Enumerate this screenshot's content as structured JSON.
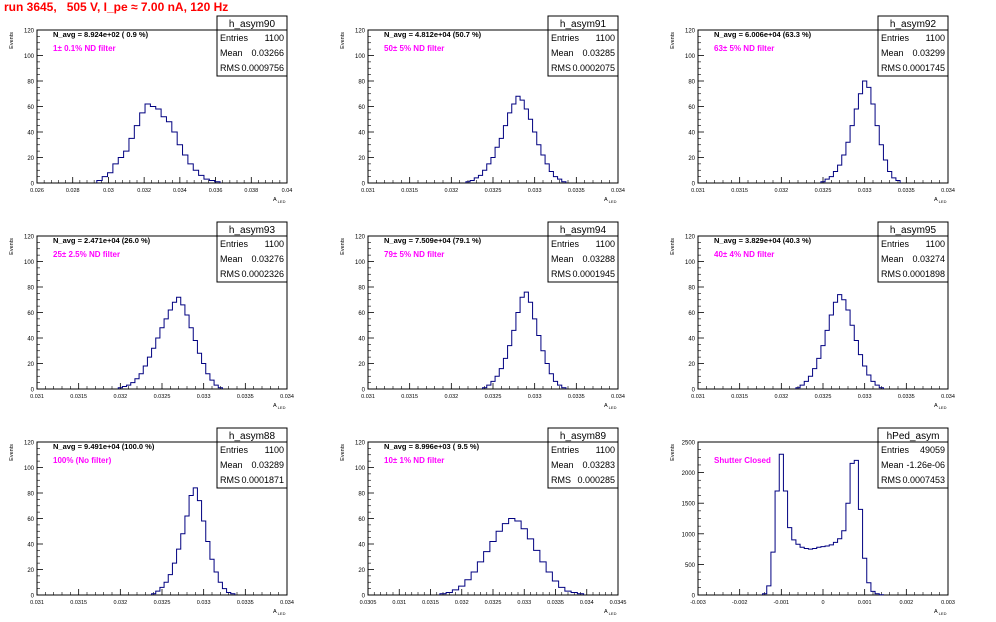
{
  "page": {
    "title": "run 3645,   505 V, I_pe ≈ 7.00 nA, 120 Hz"
  },
  "style": {
    "hist_color": "#000080",
    "annotation_color": "#ff00ff",
    "title_color": "#ff0000"
  },
  "common": {
    "y_axis_label": "Events",
    "x_axis_label": "A",
    "x_axis_label_sub": "LED",
    "entries_label": "Entries",
    "mean_label": "Mean",
    "rms_label": "RMS"
  },
  "chart_data": [
    {
      "type": "histogram",
      "name": "h_asym90",
      "navg": "N_avg = 8.924e+02 ( 0.9 %)",
      "filter": "1± 0.1% ND filter",
      "entries": "1100",
      "mean": "0.03266",
      "rms": "0.0009756",
      "xlim": [
        0.026,
        0.04
      ],
      "ylim": [
        0,
        120
      ],
      "xticks": [
        0.026,
        0.028,
        0.03,
        0.032,
        0.034,
        0.036,
        0.038,
        0.04
      ],
      "yticks": [
        0,
        20,
        40,
        60,
        80,
        100,
        120
      ],
      "x": [
        0.0295,
        0.0298,
        0.0301,
        0.0304,
        0.0307,
        0.031,
        0.0313,
        0.0316,
        0.0319,
        0.0322,
        0.0325,
        0.0328,
        0.0331,
        0.0334,
        0.0337,
        0.034,
        0.0343,
        0.0346,
        0.0349,
        0.0352,
        0.0355,
        0.0358,
        0.0361
      ],
      "values": [
        2,
        5,
        8,
        15,
        20,
        25,
        35,
        45,
        55,
        62,
        60,
        58,
        52,
        48,
        40,
        30,
        22,
        15,
        10,
        6,
        3,
        2,
        1
      ]
    },
    {
      "type": "histogram",
      "name": "h_asym91",
      "navg": "N_avg = 4.812e+04 (50.7 %)",
      "filter": "50± 5% ND filter",
      "entries": "1100",
      "mean": "0.03285",
      "rms": "0.0002075",
      "xlim": [
        0.031,
        0.034
      ],
      "ylim": [
        0,
        120
      ],
      "xticks": [
        0.031,
        0.0315,
        0.032,
        0.0325,
        0.033,
        0.0335,
        0.034
      ],
      "yticks": [
        0,
        20,
        40,
        60,
        80,
        100,
        120
      ],
      "x": [
        0.0322,
        0.03225,
        0.0323,
        0.03235,
        0.0324,
        0.03245,
        0.0325,
        0.03255,
        0.0326,
        0.03265,
        0.0327,
        0.03275,
        0.0328,
        0.03285,
        0.0329,
        0.03295,
        0.033,
        0.03305,
        0.0331,
        0.03315,
        0.0332,
        0.03325,
        0.0333,
        0.03335
      ],
      "values": [
        1,
        2,
        4,
        6,
        10,
        15,
        20,
        28,
        35,
        45,
        55,
        62,
        68,
        65,
        58,
        50,
        40,
        30,
        22,
        15,
        9,
        5,
        3,
        1
      ]
    },
    {
      "type": "histogram",
      "name": "h_asym92",
      "navg": "N_avg = 6.006e+04 (63.3 %)",
      "filter": "63± 5% ND filter",
      "entries": "1100",
      "mean": "0.03299",
      "rms": "0.0001745",
      "xlim": [
        0.031,
        0.034
      ],
      "ylim": [
        0,
        120
      ],
      "xticks": [
        0.031,
        0.0315,
        0.032,
        0.0325,
        0.033,
        0.0335,
        0.034
      ],
      "yticks": [
        0,
        20,
        40,
        60,
        80,
        100,
        120
      ],
      "x": [
        0.0325,
        0.03255,
        0.0326,
        0.03265,
        0.0327,
        0.03275,
        0.0328,
        0.03285,
        0.0329,
        0.03295,
        0.033,
        0.03305,
        0.0331,
        0.03315,
        0.0332,
        0.03325,
        0.0333,
        0.03335,
        0.0334
      ],
      "values": [
        1,
        3,
        5,
        9,
        14,
        22,
        32,
        45,
        58,
        70,
        80,
        75,
        62,
        45,
        30,
        18,
        9,
        4,
        2
      ]
    },
    {
      "type": "histogram",
      "name": "h_asym93",
      "navg": "N_avg = 2.471e+04 (26.0 %)",
      "filter": "25± 2.5% ND filter",
      "entries": "1100",
      "mean": "0.03276",
      "rms": "0.0002326",
      "xlim": [
        0.031,
        0.034
      ],
      "ylim": [
        0,
        120
      ],
      "xticks": [
        0.031,
        0.0315,
        0.032,
        0.0325,
        0.033,
        0.0335,
        0.034
      ],
      "yticks": [
        0,
        20,
        40,
        60,
        80,
        100,
        120
      ],
      "x": [
        0.032,
        0.03205,
        0.0321,
        0.03215,
        0.0322,
        0.03225,
        0.0323,
        0.03235,
        0.0324,
        0.03245,
        0.0325,
        0.03255,
        0.0326,
        0.03265,
        0.0327,
        0.03275,
        0.0328,
        0.03285,
        0.0329,
        0.03295,
        0.033,
        0.03305,
        0.0331,
        0.03315,
        0.0332
      ],
      "values": [
        1,
        2,
        3,
        5,
        8,
        12,
        18,
        25,
        32,
        40,
        48,
        55,
        62,
        68,
        72,
        66,
        58,
        48,
        38,
        28,
        20,
        12,
        7,
        3,
        1
      ]
    },
    {
      "type": "histogram",
      "name": "h_asym94",
      "navg": "N_avg = 7.509e+04 (79.1 %)",
      "filter": "79± 5% ND filter",
      "entries": "1100",
      "mean": "0.03288",
      "rms": "0.0001945",
      "xlim": [
        0.031,
        0.034
      ],
      "ylim": [
        0,
        120
      ],
      "xticks": [
        0.031,
        0.0315,
        0.032,
        0.0325,
        0.033,
        0.0335,
        0.034
      ],
      "yticks": [
        0,
        20,
        40,
        60,
        80,
        100,
        120
      ],
      "x": [
        0.0324,
        0.03245,
        0.0325,
        0.03255,
        0.0326,
        0.03265,
        0.0327,
        0.03275,
        0.0328,
        0.03285,
        0.0329,
        0.03295,
        0.033,
        0.03305,
        0.0331,
        0.03315,
        0.0332,
        0.03325,
        0.0333,
        0.03335
      ],
      "values": [
        1,
        3,
        6,
        10,
        16,
        24,
        34,
        46,
        60,
        72,
        76,
        68,
        55,
        42,
        30,
        20,
        12,
        6,
        3,
        1
      ]
    },
    {
      "type": "histogram",
      "name": "h_asym95",
      "navg": "N_avg = 3.829e+04 (40.3 %)",
      "filter": "40± 4% ND filter",
      "entries": "1100",
      "mean": "0.03274",
      "rms": "0.0001898",
      "xlim": [
        0.031,
        0.034
      ],
      "ylim": [
        0,
        120
      ],
      "xticks": [
        0.031,
        0.0315,
        0.032,
        0.0325,
        0.033,
        0.0335,
        0.034
      ],
      "yticks": [
        0,
        20,
        40,
        60,
        80,
        100,
        120
      ],
      "x": [
        0.0322,
        0.03225,
        0.0323,
        0.03235,
        0.0324,
        0.03245,
        0.0325,
        0.03255,
        0.0326,
        0.03265,
        0.0327,
        0.03275,
        0.0328,
        0.03285,
        0.0329,
        0.03295,
        0.033,
        0.03305,
        0.0331,
        0.03315,
        0.0332
      ],
      "values": [
        1,
        3,
        6,
        10,
        16,
        24,
        34,
        46,
        58,
        68,
        74,
        70,
        62,
        50,
        38,
        27,
        18,
        11,
        6,
        3,
        1
      ]
    },
    {
      "type": "histogram",
      "name": "h_asym88",
      "navg": "N_avg = 9.491e+04 (100.0 %)",
      "filter": "100% (No filter)",
      "entries": "1100",
      "mean": "0.03289",
      "rms": "0.0001871",
      "xlim": [
        0.031,
        0.034
      ],
      "ylim": [
        0,
        120
      ],
      "xticks": [
        0.031,
        0.0315,
        0.032,
        0.0325,
        0.033,
        0.0335,
        0.034
      ],
      "yticks": [
        0,
        20,
        40,
        60,
        80,
        100,
        120
      ],
      "x": [
        0.0324,
        0.03245,
        0.0325,
        0.03255,
        0.0326,
        0.03265,
        0.0327,
        0.03275,
        0.0328,
        0.03285,
        0.0329,
        0.03295,
        0.033,
        0.03305,
        0.0331,
        0.03315,
        0.0332,
        0.03325,
        0.0333,
        0.03335
      ],
      "values": [
        1,
        3,
        6,
        10,
        16,
        25,
        36,
        48,
        62,
        78,
        84,
        74,
        58,
        42,
        28,
        18,
        10,
        5,
        2,
        1
      ]
    },
    {
      "type": "histogram",
      "name": "h_asym89",
      "navg": "N_avg = 8.996e+03 ( 9.5 %)",
      "filter": "10± 1% ND filter",
      "entries": "1100",
      "mean": "0.03283",
      "rms": "0.000285",
      "xlim": [
        0.0305,
        0.0345
      ],
      "ylim": [
        0,
        120
      ],
      "xticks": [
        0.0305,
        0.031,
        0.0315,
        0.032,
        0.0325,
        0.033,
        0.0335,
        0.034,
        0.0345
      ],
      "yticks": [
        0,
        20,
        40,
        60,
        80,
        100,
        120
      ],
      "x": [
        0.0317,
        0.0318,
        0.0319,
        0.032,
        0.0321,
        0.0322,
        0.0323,
        0.0324,
        0.0325,
        0.0326,
        0.0327,
        0.0328,
        0.0329,
        0.033,
        0.0331,
        0.0332,
        0.0333,
        0.0334,
        0.0335,
        0.0336,
        0.0337,
        0.0338,
        0.0339
      ],
      "values": [
        1,
        2,
        4,
        7,
        12,
        18,
        26,
        34,
        42,
        50,
        56,
        60,
        58,
        52,
        44,
        35,
        26,
        18,
        11,
        6,
        3,
        2,
        1
      ]
    },
    {
      "type": "histogram",
      "name": "hPed_asym",
      "navg": "",
      "filter": "Shutter Closed",
      "entries": "49059",
      "mean": "-1.26e-06",
      "rms": "0.0007453",
      "xlim": [
        -0.003,
        0.003
      ],
      "ylim": [
        0,
        2500
      ],
      "xticks": [
        -0.003,
        -0.002,
        -0.001,
        0,
        0.001,
        0.002,
        0.003
      ],
      "yticks": [
        0,
        500,
        1000,
        1500,
        2000,
        2500
      ],
      "x": [
        -0.0014,
        -0.0013,
        -0.0012,
        -0.0011,
        -0.001,
        -0.0009,
        -0.0008,
        -0.0007,
        -0.0006,
        -0.0005,
        -0.0004,
        -0.0003,
        -0.0002,
        -0.0001,
        0.0,
        0.0001,
        0.0002,
        0.0003,
        0.0004,
        0.0005,
        0.0006,
        0.0007,
        0.0008,
        0.0009,
        0.001,
        0.0011,
        0.0012,
        0.0013,
        0.0014
      ],
      "values": [
        20,
        150,
        700,
        1700,
        2300,
        1700,
        1100,
        900,
        830,
        780,
        760,
        750,
        760,
        780,
        790,
        800,
        820,
        860,
        920,
        1050,
        1500,
        2150,
        2200,
        1400,
        600,
        200,
        60,
        20,
        5
      ]
    }
  ]
}
